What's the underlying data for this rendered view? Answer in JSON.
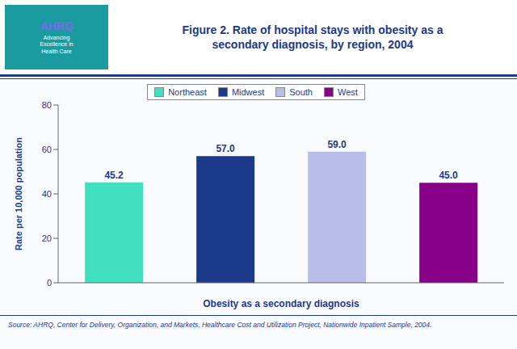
{
  "chart_data": {
    "type": "bar",
    "title": "Figure 2. Rate of hospital stays with obesity as a\nsecondary diagnosis, by region, 2004",
    "categories": [
      "Northeast",
      "Midwest",
      "South",
      "West"
    ],
    "values": [
      45.2,
      57.0,
      59.0,
      45.0
    ],
    "value_labels": [
      "45.2",
      "57.0",
      "59.0",
      "45.0"
    ],
    "colors": [
      "#40E0C0",
      "#1B3A8C",
      "#B8BEE8",
      "#880088"
    ],
    "xlabel": "Obesity as a secondary diagnosis",
    "ylabel": "Rate per 10,000 population",
    "ylim": [
      0,
      80
    ],
    "yticks": [
      0,
      20,
      40,
      60,
      80
    ],
    "grid": false,
    "legend": "top",
    "data_labels": true,
    "tick_labels": "y",
    "annotations": [
      "AHRQ",
      "Advancing\nExcellence in\nHealth Care",
      "Source: AHRQ, Center for Delivery, Organization, and Markets, Healthcare Cost and Utilization Project, Nationwide Inpatient Sample, 2004."
    ]
  }
}
